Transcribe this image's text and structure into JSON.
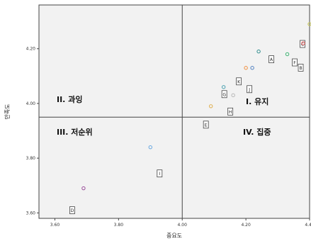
{
  "chart_data": {
    "type": "scatter",
    "title": "",
    "xlabel": "중요도",
    "ylabel": "만족도",
    "xlim": [
      3.55,
      4.4
    ],
    "ylim": [
      3.58,
      4.36
    ],
    "xticks": [
      "3.60",
      "3.80",
      "4.00",
      "4.20",
      "4.40"
    ],
    "yticks": [
      "3.60",
      "3.80",
      "4.00",
      "4.20"
    ],
    "xtick_values": [
      3.6,
      3.8,
      4.0,
      4.2,
      4.4
    ],
    "ytick_values": [
      3.6,
      3.8,
      4.0,
      4.2
    ],
    "reference_lines": {
      "x": 4.0,
      "y": 3.95
    },
    "grid": false,
    "quadrants": {
      "upper_left": "II. 과잉",
      "upper_right": "I. 유지",
      "lower_left": "III. 저순위",
      "lower_right": "IV. 집중"
    },
    "points": [
      {
        "label": "A",
        "x": 4.24,
        "y": 4.19,
        "color": "#2e8b8b"
      },
      {
        "label": "B",
        "x": 4.33,
        "y": 4.18,
        "color": "#3cb371"
      },
      {
        "label": "C",
        "x": 4.4,
        "y": 4.29,
        "color": "#c8c850"
      },
      {
        "label": "D",
        "x": 3.69,
        "y": 3.69,
        "color": "#9b4f9b"
      },
      {
        "label": "E",
        "x": 4.09,
        "y": 3.99,
        "color": "#e0b050"
      },
      {
        "label": "F",
        "x": 4.38,
        "y": 4.22,
        "color": "#e05050"
      },
      {
        "label": "G",
        "x": 4.13,
        "y": 4.06,
        "color": "#4aa0b0"
      },
      {
        "label": "H",
        "x": 4.16,
        "y": 4.03,
        "color": "#b8b8b8"
      },
      {
        "label": "I",
        "x": 3.9,
        "y": 3.84,
        "color": "#6aa8e0"
      },
      {
        "label": "J",
        "x": 4.22,
        "y": 4.13,
        "color": "#5080c0"
      },
      {
        "label": "K",
        "x": 4.2,
        "y": 4.13,
        "color": "#f09040"
      }
    ]
  }
}
